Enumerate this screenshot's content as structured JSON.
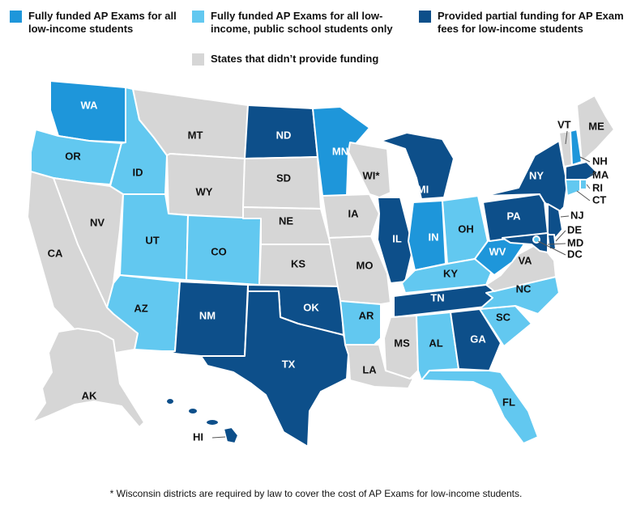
{
  "legend": [
    {
      "label": "Fully funded AP Exams for all low-income students",
      "color": "#1E96DA",
      "category": "full"
    },
    {
      "label": "Fully funded AP Exams for all low-income, public school students only",
      "color": "#62C8F0",
      "category": "public"
    },
    {
      "label": "Provided partial funding for AP Exam fees for low-income students",
      "color": "#0D4F8A",
      "category": "partial"
    },
    {
      "label": "States that didn’t provide funding",
      "color": "#D6D6D6",
      "category": "none"
    }
  ],
  "states": [
    {
      "abbr": "WA",
      "category": "full"
    },
    {
      "abbr": "OR",
      "category": "public"
    },
    {
      "abbr": "CA",
      "category": "none"
    },
    {
      "abbr": "NV",
      "category": "none"
    },
    {
      "abbr": "ID",
      "category": "public"
    },
    {
      "abbr": "MT",
      "category": "none"
    },
    {
      "abbr": "WY",
      "category": "none"
    },
    {
      "abbr": "UT",
      "category": "public"
    },
    {
      "abbr": "AZ",
      "category": "public"
    },
    {
      "abbr": "CO",
      "category": "public"
    },
    {
      "abbr": "NM",
      "category": "partial"
    },
    {
      "abbr": "ND",
      "category": "partial"
    },
    {
      "abbr": "SD",
      "category": "none"
    },
    {
      "abbr": "NE",
      "category": "none"
    },
    {
      "abbr": "KS",
      "category": "none"
    },
    {
      "abbr": "OK",
      "category": "partial"
    },
    {
      "abbr": "TX",
      "category": "partial"
    },
    {
      "abbr": "MN",
      "category": "full"
    },
    {
      "abbr": "IA",
      "category": "none"
    },
    {
      "abbr": "MO",
      "category": "none"
    },
    {
      "abbr": "AR",
      "category": "public"
    },
    {
      "abbr": "LA",
      "category": "none"
    },
    {
      "abbr": "WI*",
      "category": "none"
    },
    {
      "abbr": "IL",
      "category": "partial"
    },
    {
      "abbr": "MI",
      "category": "partial"
    },
    {
      "abbr": "IN",
      "category": "full"
    },
    {
      "abbr": "OH",
      "category": "public"
    },
    {
      "abbr": "KY",
      "category": "public"
    },
    {
      "abbr": "TN",
      "category": "partial"
    },
    {
      "abbr": "MS",
      "category": "none"
    },
    {
      "abbr": "AL",
      "category": "public"
    },
    {
      "abbr": "GA",
      "category": "partial"
    },
    {
      "abbr": "FL",
      "category": "public"
    },
    {
      "abbr": "SC",
      "category": "public"
    },
    {
      "abbr": "NC",
      "category": "public"
    },
    {
      "abbr": "VA",
      "category": "none"
    },
    {
      "abbr": "WV",
      "category": "full"
    },
    {
      "abbr": "PA",
      "category": "partial"
    },
    {
      "abbr": "NY",
      "category": "partial"
    },
    {
      "abbr": "VT",
      "category": "none"
    },
    {
      "abbr": "NH",
      "category": "full"
    },
    {
      "abbr": "ME",
      "category": "none"
    },
    {
      "abbr": "MA",
      "category": "partial"
    },
    {
      "abbr": "RI",
      "category": "public"
    },
    {
      "abbr": "CT",
      "category": "public"
    },
    {
      "abbr": "NJ",
      "category": "partial"
    },
    {
      "abbr": "DE",
      "category": "partial"
    },
    {
      "abbr": "MD",
      "category": "partial"
    },
    {
      "abbr": "DC",
      "category": "public"
    },
    {
      "abbr": "AK",
      "category": "none"
    },
    {
      "abbr": "HI",
      "category": "partial"
    }
  ],
  "footnote": "* Wisconsin districts are required by law to cover the cost of AP Exams for low-income students."
}
